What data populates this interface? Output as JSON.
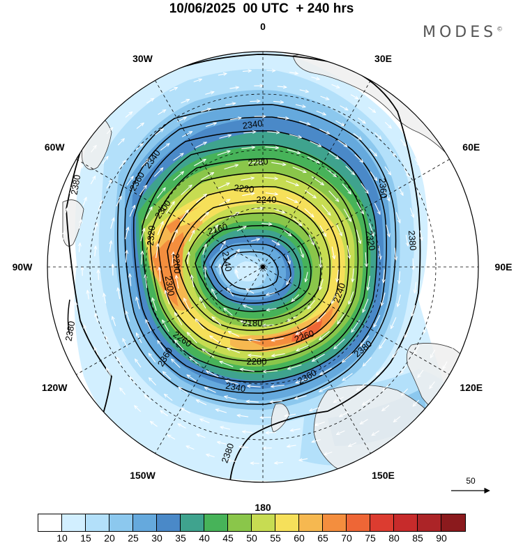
{
  "title": "10/06/2025  00 UTC  + 240 hrs",
  "brand": "MODES",
  "brand_mark": "©",
  "longitude_labels": [
    {
      "name": "0",
      "lon": 0
    },
    {
      "name": "30E",
      "lon": 30
    },
    {
      "name": "60E",
      "lon": 60
    },
    {
      "name": "90E",
      "lon": 90
    },
    {
      "name": "120E",
      "lon": 120
    },
    {
      "name": "150E",
      "lon": 150
    },
    {
      "name": "180",
      "lon": 180
    },
    {
      "name": "150W",
      "lon": -150
    },
    {
      "name": "120W",
      "lon": -120
    },
    {
      "name": "90W",
      "lon": -90
    },
    {
      "name": "60W",
      "lon": -60
    },
    {
      "name": "30W",
      "lon": -30
    }
  ],
  "reference_vector_label": "50",
  "colorbar": {
    "colors": [
      "#ffffff",
      "#d2efff",
      "#b3e0fa",
      "#8cc8ee",
      "#65a9dd",
      "#4a89c8",
      "#3fa38e",
      "#47b359",
      "#8ac64a",
      "#c7dc52",
      "#f6e05a",
      "#f6b850",
      "#f48e3e",
      "#ee6636",
      "#dc3c30",
      "#c72b2b",
      "#ac2427",
      "#8b1a1d"
    ],
    "ticks": [
      "10",
      "15",
      "20",
      "25",
      "30",
      "35",
      "40",
      "45",
      "50",
      "55",
      "60",
      "65",
      "70",
      "75",
      "80",
      "85",
      "90"
    ]
  },
  "contour_labels": [
    "2340",
    "2340",
    "2360",
    "2280",
    "2220",
    "2300",
    "2160",
    "2320",
    "2320",
    "2140",
    "2200",
    "2300",
    "2180",
    "2240",
    "2260",
    "2260",
    "2280",
    "2240",
    "2360",
    "2380",
    "2340",
    "2360",
    "2380",
    "2380",
    "2360",
    "2380",
    "2380"
  ]
}
